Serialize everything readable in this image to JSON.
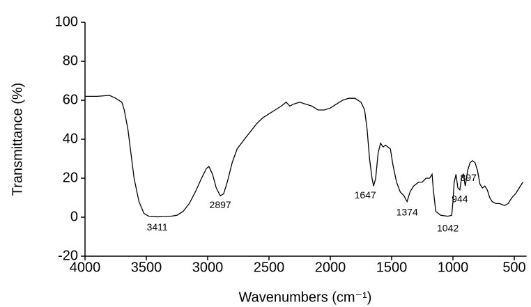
{
  "chart_data": {
    "type": "line",
    "x_label": "Wavenumbers (cm⁻¹)",
    "y_label": "Transmittance (%)",
    "x": [
      4000,
      3900,
      3800,
      3750,
      3700,
      3680,
      3650,
      3620,
      3600,
      3560,
      3520,
      3480,
      3411,
      3350,
      3300,
      3250,
      3200,
      3150,
      3100,
      3050,
      3010,
      2990,
      2960,
      2930,
      2897,
      2870,
      2840,
      2800,
      2760,
      2700,
      2650,
      2600,
      2550,
      2500,
      2450,
      2400,
      2360,
      2330,
      2300,
      2250,
      2200,
      2150,
      2100,
      2050,
      2000,
      1950,
      1900,
      1850,
      1800,
      1750,
      1720,
      1700,
      1680,
      1660,
      1647,
      1630,
      1610,
      1590,
      1570,
      1550,
      1530,
      1510,
      1490,
      1460,
      1430,
      1400,
      1374,
      1350,
      1320,
      1280,
      1250,
      1220,
      1190,
      1170,
      1160,
      1140,
      1100,
      1042,
      1010,
      1000,
      990,
      975,
      960,
      944,
      930,
      915,
      900,
      897,
      880,
      860,
      840,
      820,
      800,
      780,
      760,
      740,
      720,
      700,
      680,
      650,
      620,
      580,
      550,
      520,
      490,
      460,
      430
    ],
    "values": [
      62,
      62,
      62.5,
      61,
      59,
      55,
      45,
      30,
      20,
      8,
      2,
      0.5,
      0.2,
      0.3,
      0.5,
      1,
      3,
      7,
      13,
      20,
      25,
      26,
      22,
      15,
      11,
      12,
      18,
      28,
      35,
      40,
      44,
      48,
      51,
      53,
      55,
      57,
      59,
      57,
      58,
      59,
      58,
      57,
      55,
      55,
      56,
      58,
      60,
      61,
      61,
      59,
      55,
      45,
      30,
      20,
      16,
      20,
      33,
      38,
      36,
      37,
      36,
      35,
      27,
      18,
      13,
      11,
      8,
      13,
      16,
      18,
      18,
      20,
      20,
      22,
      14,
      3,
      1,
      0.5,
      1,
      8,
      18,
      22,
      15,
      14,
      20,
      22,
      16,
      17,
      24,
      28,
      29,
      28,
      24,
      17,
      15,
      16,
      14,
      10,
      8,
      7,
      7,
      6,
      7,
      10,
      12,
      15,
      18
    ],
    "color": "#000000",
    "xlim": [
      4000,
      400
    ],
    "ylim": [
      -20,
      100
    ],
    "xticks": [
      4000,
      3500,
      3000,
      2500,
      2000,
      1500,
      1000,
      500
    ],
    "yticks": [
      -20,
      0,
      20,
      40,
      60,
      80,
      100
    ],
    "annotations": [
      {
        "text": "3411",
        "x": 3411,
        "y": 0.2
      },
      {
        "text": "2897",
        "x": 2897,
        "y": 11
      },
      {
        "text": "1647",
        "x": 1647,
        "y": 16
      },
      {
        "text": "1374",
        "x": 1374,
        "y": 8
      },
      {
        "text": "1042",
        "x": 1042,
        "y": 0.5
      },
      {
        "text": "944",
        "x": 944,
        "y": 14
      },
      {
        "text": "897",
        "x": 897,
        "y": 17
      }
    ]
  }
}
